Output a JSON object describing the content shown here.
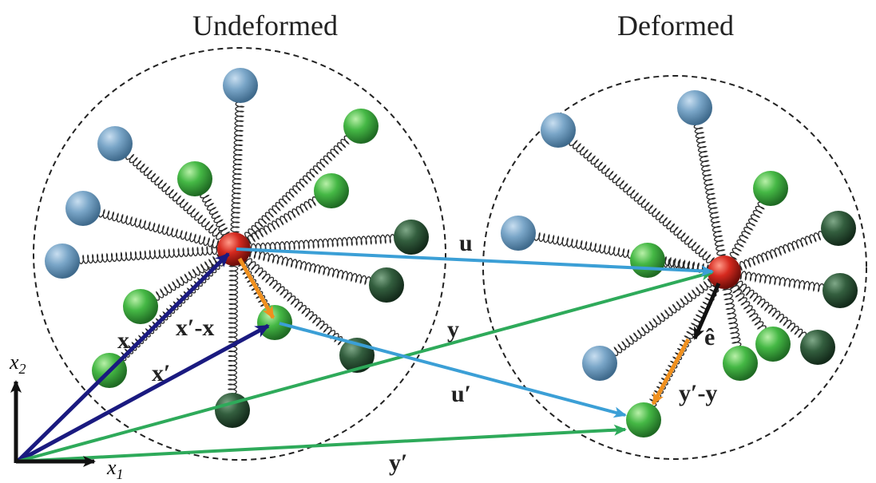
{
  "titles": {
    "undeformed": "Undeformed",
    "deformed": "Deformed"
  },
  "axes": {
    "x1": "x",
    "x1_sub": "1",
    "x2": "x",
    "x2_sub": "2"
  },
  "vector_labels": {
    "x": "x",
    "x_prime": "x′",
    "x_prime_minus_x": "x′-x",
    "u": "u",
    "u_prime": "u′",
    "y": "y",
    "y_prime": "y′",
    "y_prime_minus_y": "y′-y",
    "e_hat": "ê"
  },
  "colors": {
    "x_vectors": "#1a1a80",
    "u_vectors": "#3b9fd6",
    "y_vectors": "#2eaa5a",
    "relative_vectors": "#f0901e",
    "center_particle": "#d42a20",
    "neighbor_blue": "#6f9fc0",
    "neighbor_green": "#3fb44a",
    "neighbor_dark": "#2f5e3a"
  }
}
